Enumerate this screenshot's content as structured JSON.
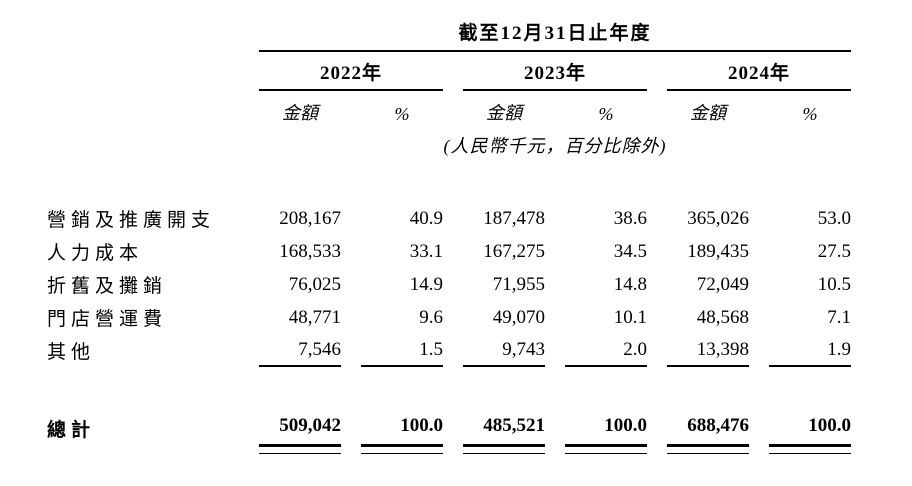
{
  "colors": {
    "text": "#000000",
    "background": "#ffffff",
    "rule": "#000000"
  },
  "table": {
    "title": "截至12月31日止年度",
    "years": [
      "2022年",
      "2023年",
      "2024年"
    ],
    "col_headers": [
      "金額",
      "%",
      "金額",
      "%",
      "金額",
      "%"
    ],
    "unit_note": "(人民幣千元，百分比除外)",
    "rows": [
      {
        "label": "營銷及推廣開支",
        "values": [
          "208,167",
          "40.9",
          "187,478",
          "38.6",
          "365,026",
          "53.0"
        ]
      },
      {
        "label": "人力成本",
        "values": [
          "168,533",
          "33.1",
          "167,275",
          "34.5",
          "189,435",
          "27.5"
        ]
      },
      {
        "label": "折舊及攤銷",
        "values": [
          "76,025",
          "14.9",
          "71,955",
          "14.8",
          "72,049",
          "10.5"
        ]
      },
      {
        "label": "門店營運費",
        "values": [
          "48,771",
          "9.6",
          "49,070",
          "10.1",
          "48,568",
          "7.1"
        ]
      },
      {
        "label": "其他",
        "values": [
          "7,546",
          "1.5",
          "9,743",
          "2.0",
          "13,398",
          "1.9"
        ]
      }
    ],
    "total": {
      "label": "總計",
      "values": [
        "509,042",
        "100.0",
        "485,521",
        "100.0",
        "688,476",
        "100.0"
      ]
    }
  }
}
